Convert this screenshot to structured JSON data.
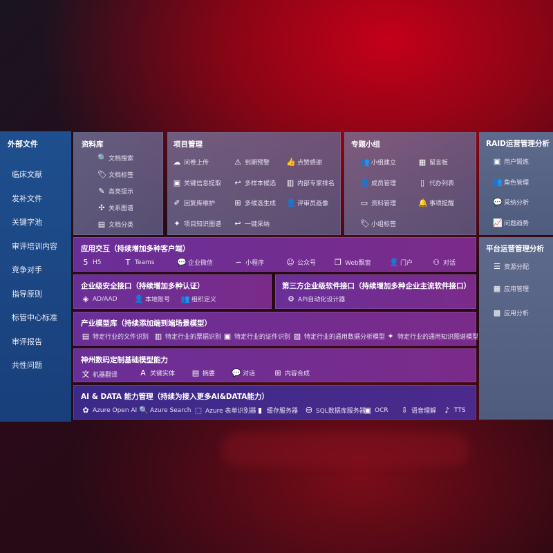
{
  "sidebar": {
    "title": "外部文件",
    "items": [
      "临床文献",
      "发补文件",
      "关键字池",
      "审评培训内容",
      "竞争对手",
      "指导原则",
      "标管中心标准",
      "审评报告",
      "共性问题"
    ]
  },
  "library": {
    "title": "资料库",
    "items": [
      {
        "icon": "doc-search-icon",
        "label": "文档搜索"
      },
      {
        "icon": "tag-icon",
        "label": "文档标签"
      },
      {
        "icon": "highlight-pen-icon",
        "label": "高亮提示"
      },
      {
        "icon": "graph-icon",
        "label": "关系图谱"
      },
      {
        "icon": "category-icon",
        "label": "文档分类"
      }
    ]
  },
  "project": {
    "title": "项目管理",
    "items": [
      {
        "icon": "cloud-upload-icon",
        "label": "问卷上传"
      },
      {
        "icon": "alarm-icon",
        "label": "到期预警"
      },
      {
        "icon": "thumbs-up-icon",
        "label": "点赞感谢"
      },
      {
        "icon": "extract-icon",
        "label": "关键信息提取"
      },
      {
        "icon": "reply-icon",
        "label": "多样本候选"
      },
      {
        "icon": "ranking-icon",
        "label": "内部专家排名"
      },
      {
        "icon": "edit-icon",
        "label": "回复库维护"
      },
      {
        "icon": "puzzle-icon",
        "label": "多候选生成"
      },
      {
        "icon": "user-profile-icon",
        "label": "评审员画像"
      },
      {
        "icon": "knowledge-graph-icon",
        "label": "项目知识图谱"
      },
      {
        "icon": "reply-icon",
        "label": "一键采纳"
      }
    ]
  },
  "group": {
    "title": "专题小组",
    "items": [
      {
        "icon": "group-icon",
        "label": "小组建立"
      },
      {
        "icon": "bbs-icon",
        "label": "留言板"
      },
      {
        "icon": "member-icon",
        "label": "成员管理"
      },
      {
        "icon": "clipboard-icon",
        "label": "代办列表"
      },
      {
        "icon": "folder-icon",
        "label": "资料管理"
      },
      {
        "icon": "bell-icon",
        "label": "事项提醒"
      },
      {
        "icon": "tag-icon",
        "label": "小组标签"
      }
    ]
  },
  "raid": {
    "title": "RAID运营管理分析",
    "items": [
      {
        "icon": "id-card-icon",
        "label": "用户锻炼"
      },
      {
        "icon": "roles-icon",
        "label": "角色管理"
      },
      {
        "icon": "qa-icon",
        "label": "采纳分析"
      },
      {
        "icon": "trend-icon",
        "label": "问题趋势"
      }
    ]
  },
  "platform": {
    "title": "平台运营管理分析",
    "items": [
      {
        "icon": "checklist-icon",
        "label": "资源分配"
      },
      {
        "icon": "apps-icon",
        "label": "应用管理"
      },
      {
        "icon": "analytics-icon",
        "label": "应用分析"
      }
    ]
  },
  "interaction": {
    "title": "应用交互（持续增加多种客户端）",
    "items": [
      {
        "icon": "html5-icon",
        "label": "H5"
      },
      {
        "icon": "teams-icon",
        "label": "Teams"
      },
      {
        "icon": "wechat-work-icon",
        "label": "企业微信"
      },
      {
        "icon": "mini-program-icon",
        "label": "小程序"
      },
      {
        "icon": "official-account-icon",
        "label": "公众号"
      },
      {
        "icon": "window-icon",
        "label": "Web飘窗"
      },
      {
        "icon": "portal-icon",
        "label": "门户"
      },
      {
        "icon": "chat-icon",
        "label": "对话"
      }
    ]
  },
  "security": {
    "title": "企业级安全接口（持续增加多种认证）",
    "items": [
      {
        "icon": "ad-icon",
        "label": "AD/AAD"
      },
      {
        "icon": "local-account-icon",
        "label": "本地账号"
      },
      {
        "icon": "organization-icon",
        "label": "组织定义"
      }
    ]
  },
  "thirdparty": {
    "title": "第三方企业级软件接口（持续增加多种企业主流软件接口）",
    "items": [
      {
        "icon": "api-gear-icon",
        "label": "API自动化设计器"
      }
    ]
  },
  "industry": {
    "title": "产业模型库（持续添加端到端场景模型）",
    "items": [
      {
        "icon": "file-icon",
        "label": "特定行业的文件识别"
      },
      {
        "icon": "receipt-icon",
        "label": "特定行业的票据识别"
      },
      {
        "icon": "id-card-icon",
        "label": "特定行业的证件识别"
      },
      {
        "icon": "image-chart-icon",
        "label": "特定行业的通用数据分析模型"
      },
      {
        "icon": "knowledge-graph-icon",
        "label": "特定行业的通用知识图谱模型"
      }
    ]
  },
  "base": {
    "title": "神州数码定制基础模型能力",
    "items": [
      {
        "icon": "translate-icon",
        "label": "机器翻译"
      },
      {
        "icon": "entity-icon",
        "label": "关键实体"
      },
      {
        "icon": "summary-icon",
        "label": "摘要"
      },
      {
        "icon": "chat-bubble-icon",
        "label": "对话"
      },
      {
        "icon": "puzzle-icon",
        "label": "内容合成"
      }
    ]
  },
  "aidata": {
    "title": "AI & DATA 能力管理（持续为接入更多AI&DATA能力）",
    "items": [
      {
        "icon": "openai-icon",
        "label": "Azure Open AI"
      },
      {
        "icon": "search-doc-icon",
        "label": "Azure Search"
      },
      {
        "icon": "form-recognizer-icon",
        "label": "Azure 表单识别器"
      },
      {
        "icon": "cache-server-icon",
        "label": "缓存服务器"
      },
      {
        "icon": "database-icon",
        "label": "SQL数据库服务器"
      },
      {
        "icon": "ocr-icon",
        "label": "OCR"
      },
      {
        "icon": "speech-icon",
        "label": "语音理解"
      },
      {
        "icon": "tts-icon",
        "label": "TTS"
      }
    ]
  }
}
